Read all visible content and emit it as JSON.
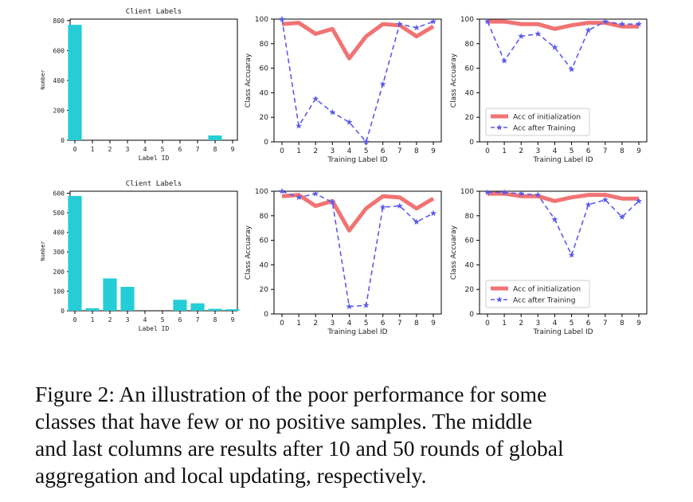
{
  "colors": {
    "bar": "#25cdd6",
    "init_line": "#ee5a5a",
    "trained_line": "#5b5bee",
    "axis": "#000000"
  },
  "caption": {
    "lines": [
      "Figure 2: An illustration of the poor performance for some",
      "classes that have few or no positive samples. The middle",
      "and last columns are results after 10 and 50 rounds of global",
      "aggregation and local updating, respectively."
    ]
  },
  "chart_data": [
    {
      "id": "r1c1",
      "type": "bar",
      "title": "Client Labels",
      "xlabel": "Label ID",
      "ylabel": "Number",
      "categories": [
        "0",
        "1",
        "2",
        "3",
        "4",
        "5",
        "6",
        "7",
        "8",
        "9"
      ],
      "values": [
        772,
        0,
        0,
        0,
        0,
        0,
        0,
        0,
        32,
        0
      ],
      "ylim": [
        0,
        810
      ],
      "yticks": [
        0,
        200,
        400,
        600,
        800
      ]
    },
    {
      "id": "r1c2",
      "type": "line",
      "title": "",
      "xlabel": "Training Label ID",
      "ylabel": "Class Accuaray",
      "x": [
        0,
        1,
        2,
        3,
        4,
        5,
        6,
        7,
        8,
        9
      ],
      "ylim": [
        0,
        100
      ],
      "yticks": [
        0,
        20,
        40,
        60,
        80,
        100
      ],
      "series": [
        {
          "name": "",
          "style": "init",
          "values": [
            96,
            97,
            88,
            92,
            68,
            86,
            96,
            95,
            86,
            94
          ]
        },
        {
          "name": "",
          "style": "trained",
          "values": [
            100,
            13,
            35,
            24,
            16,
            0,
            47,
            96,
            93,
            98
          ]
        }
      ]
    },
    {
      "id": "r1c3",
      "type": "line",
      "title": "",
      "xlabel": "Training Label ID",
      "ylabel": "Class Accuaray",
      "x": [
        0,
        1,
        2,
        3,
        4,
        5,
        6,
        7,
        8,
        9
      ],
      "ylim": [
        0,
        100
      ],
      "yticks": [
        0,
        20,
        40,
        60,
        80,
        100
      ],
      "legend": "lower-right",
      "series": [
        {
          "name": "Acc of initialization",
          "style": "init",
          "values": [
            98,
            98,
            96,
            96,
            92,
            95,
            97,
            97,
            94,
            94
          ]
        },
        {
          "name": "Acc after Training",
          "style": "trained",
          "values": [
            98,
            66,
            86,
            88,
            77,
            59,
            91,
            98,
            96,
            96
          ]
        }
      ]
    },
    {
      "id": "r2c1",
      "type": "bar",
      "title": "Client Labels",
      "xlabel": "Label ID",
      "ylabel": "Number",
      "categories": [
        "0",
        "1",
        "2",
        "3",
        "4",
        "5",
        "6",
        "7",
        "8",
        "9"
      ],
      "values": [
        586,
        13,
        165,
        122,
        0,
        0,
        56,
        38,
        10,
        8
      ],
      "ylim": [
        0,
        610
      ],
      "yticks": [
        0,
        100,
        200,
        300,
        400,
        500,
        600
      ]
    },
    {
      "id": "r2c2",
      "type": "line",
      "title": "",
      "xlabel": "Training Label ID",
      "ylabel": "Class Accuaray",
      "x": [
        0,
        1,
        2,
        3,
        4,
        5,
        6,
        7,
        8,
        9
      ],
      "ylim": [
        0,
        100
      ],
      "yticks": [
        0,
        20,
        40,
        60,
        80,
        100
      ],
      "series": [
        {
          "name": "",
          "style": "init",
          "values": [
            96,
            97,
            88,
            92,
            68,
            86,
            96,
            95,
            86,
            94
          ]
        },
        {
          "name": "",
          "style": "trained",
          "values": [
            100,
            95,
            98,
            91,
            6,
            7,
            87,
            88,
            75,
            82
          ]
        }
      ]
    },
    {
      "id": "r2c3",
      "type": "line",
      "title": "",
      "xlabel": "Training Label ID",
      "ylabel": "Class Accuaray",
      "x": [
        0,
        1,
        2,
        3,
        4,
        5,
        6,
        7,
        8,
        9
      ],
      "ylim": [
        0,
        100
      ],
      "yticks": [
        0,
        20,
        40,
        60,
        80,
        100
      ],
      "legend": "lower-right",
      "series": [
        {
          "name": "Acc of initialization",
          "style": "init",
          "values": [
            98,
            98,
            96,
            96,
            92,
            95,
            97,
            97,
            94,
            94
          ]
        },
        {
          "name": "Acc after Training",
          "style": "trained",
          "values": [
            99,
            99,
            98,
            97,
            77,
            48,
            89,
            93,
            79,
            92
          ]
        }
      ]
    }
  ]
}
